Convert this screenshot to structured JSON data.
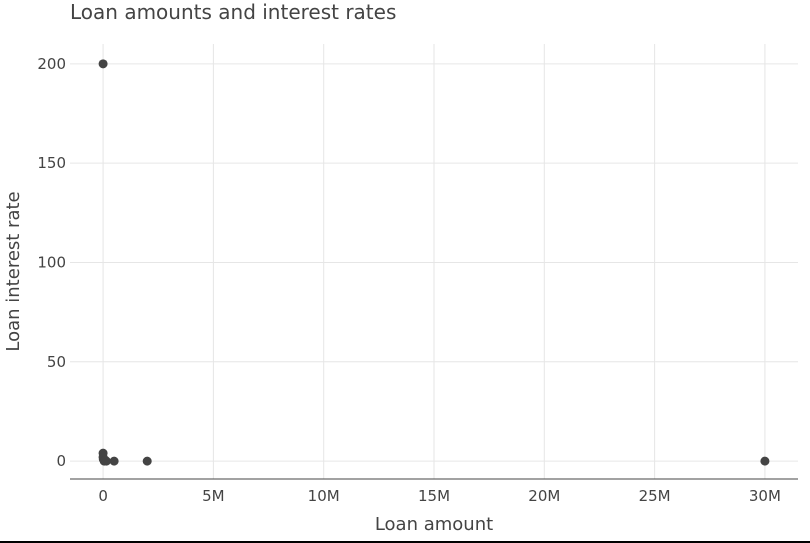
{
  "chart_data": {
    "type": "scatter",
    "title": "Loan amounts and interest rates",
    "xlabel": "Loan amount",
    "ylabel": "Loan interest rate",
    "xlim": [
      -1500000,
      31500000
    ],
    "ylim": [
      -9,
      210
    ],
    "x_ticks": [
      {
        "value": 0,
        "label": "0"
      },
      {
        "value": 5000000,
        "label": "5M"
      },
      {
        "value": 10000000,
        "label": "10M"
      },
      {
        "value": 15000000,
        "label": "15M"
      },
      {
        "value": 20000000,
        "label": "20M"
      },
      {
        "value": 25000000,
        "label": "25M"
      },
      {
        "value": 30000000,
        "label": "30M"
      }
    ],
    "y_ticks": [
      {
        "value": 0,
        "label": "0"
      },
      {
        "value": 50,
        "label": "50"
      },
      {
        "value": 100,
        "label": "100"
      },
      {
        "value": 150,
        "label": "150"
      },
      {
        "value": 200,
        "label": "200"
      }
    ],
    "grid": true,
    "legend": "none",
    "marker_color": "#444444",
    "points": [
      {
        "x": 0,
        "y": 200
      },
      {
        "x": 0,
        "y": 4
      },
      {
        "x": 0,
        "y": 2
      },
      {
        "x": 10000,
        "y": 1
      },
      {
        "x": 50000,
        "y": 0
      },
      {
        "x": 100000,
        "y": 0.5
      },
      {
        "x": 150000,
        "y": 0
      },
      {
        "x": 500000,
        "y": 0
      },
      {
        "x": 2000000,
        "y": 0
      },
      {
        "x": 30000000,
        "y": 0
      }
    ]
  }
}
